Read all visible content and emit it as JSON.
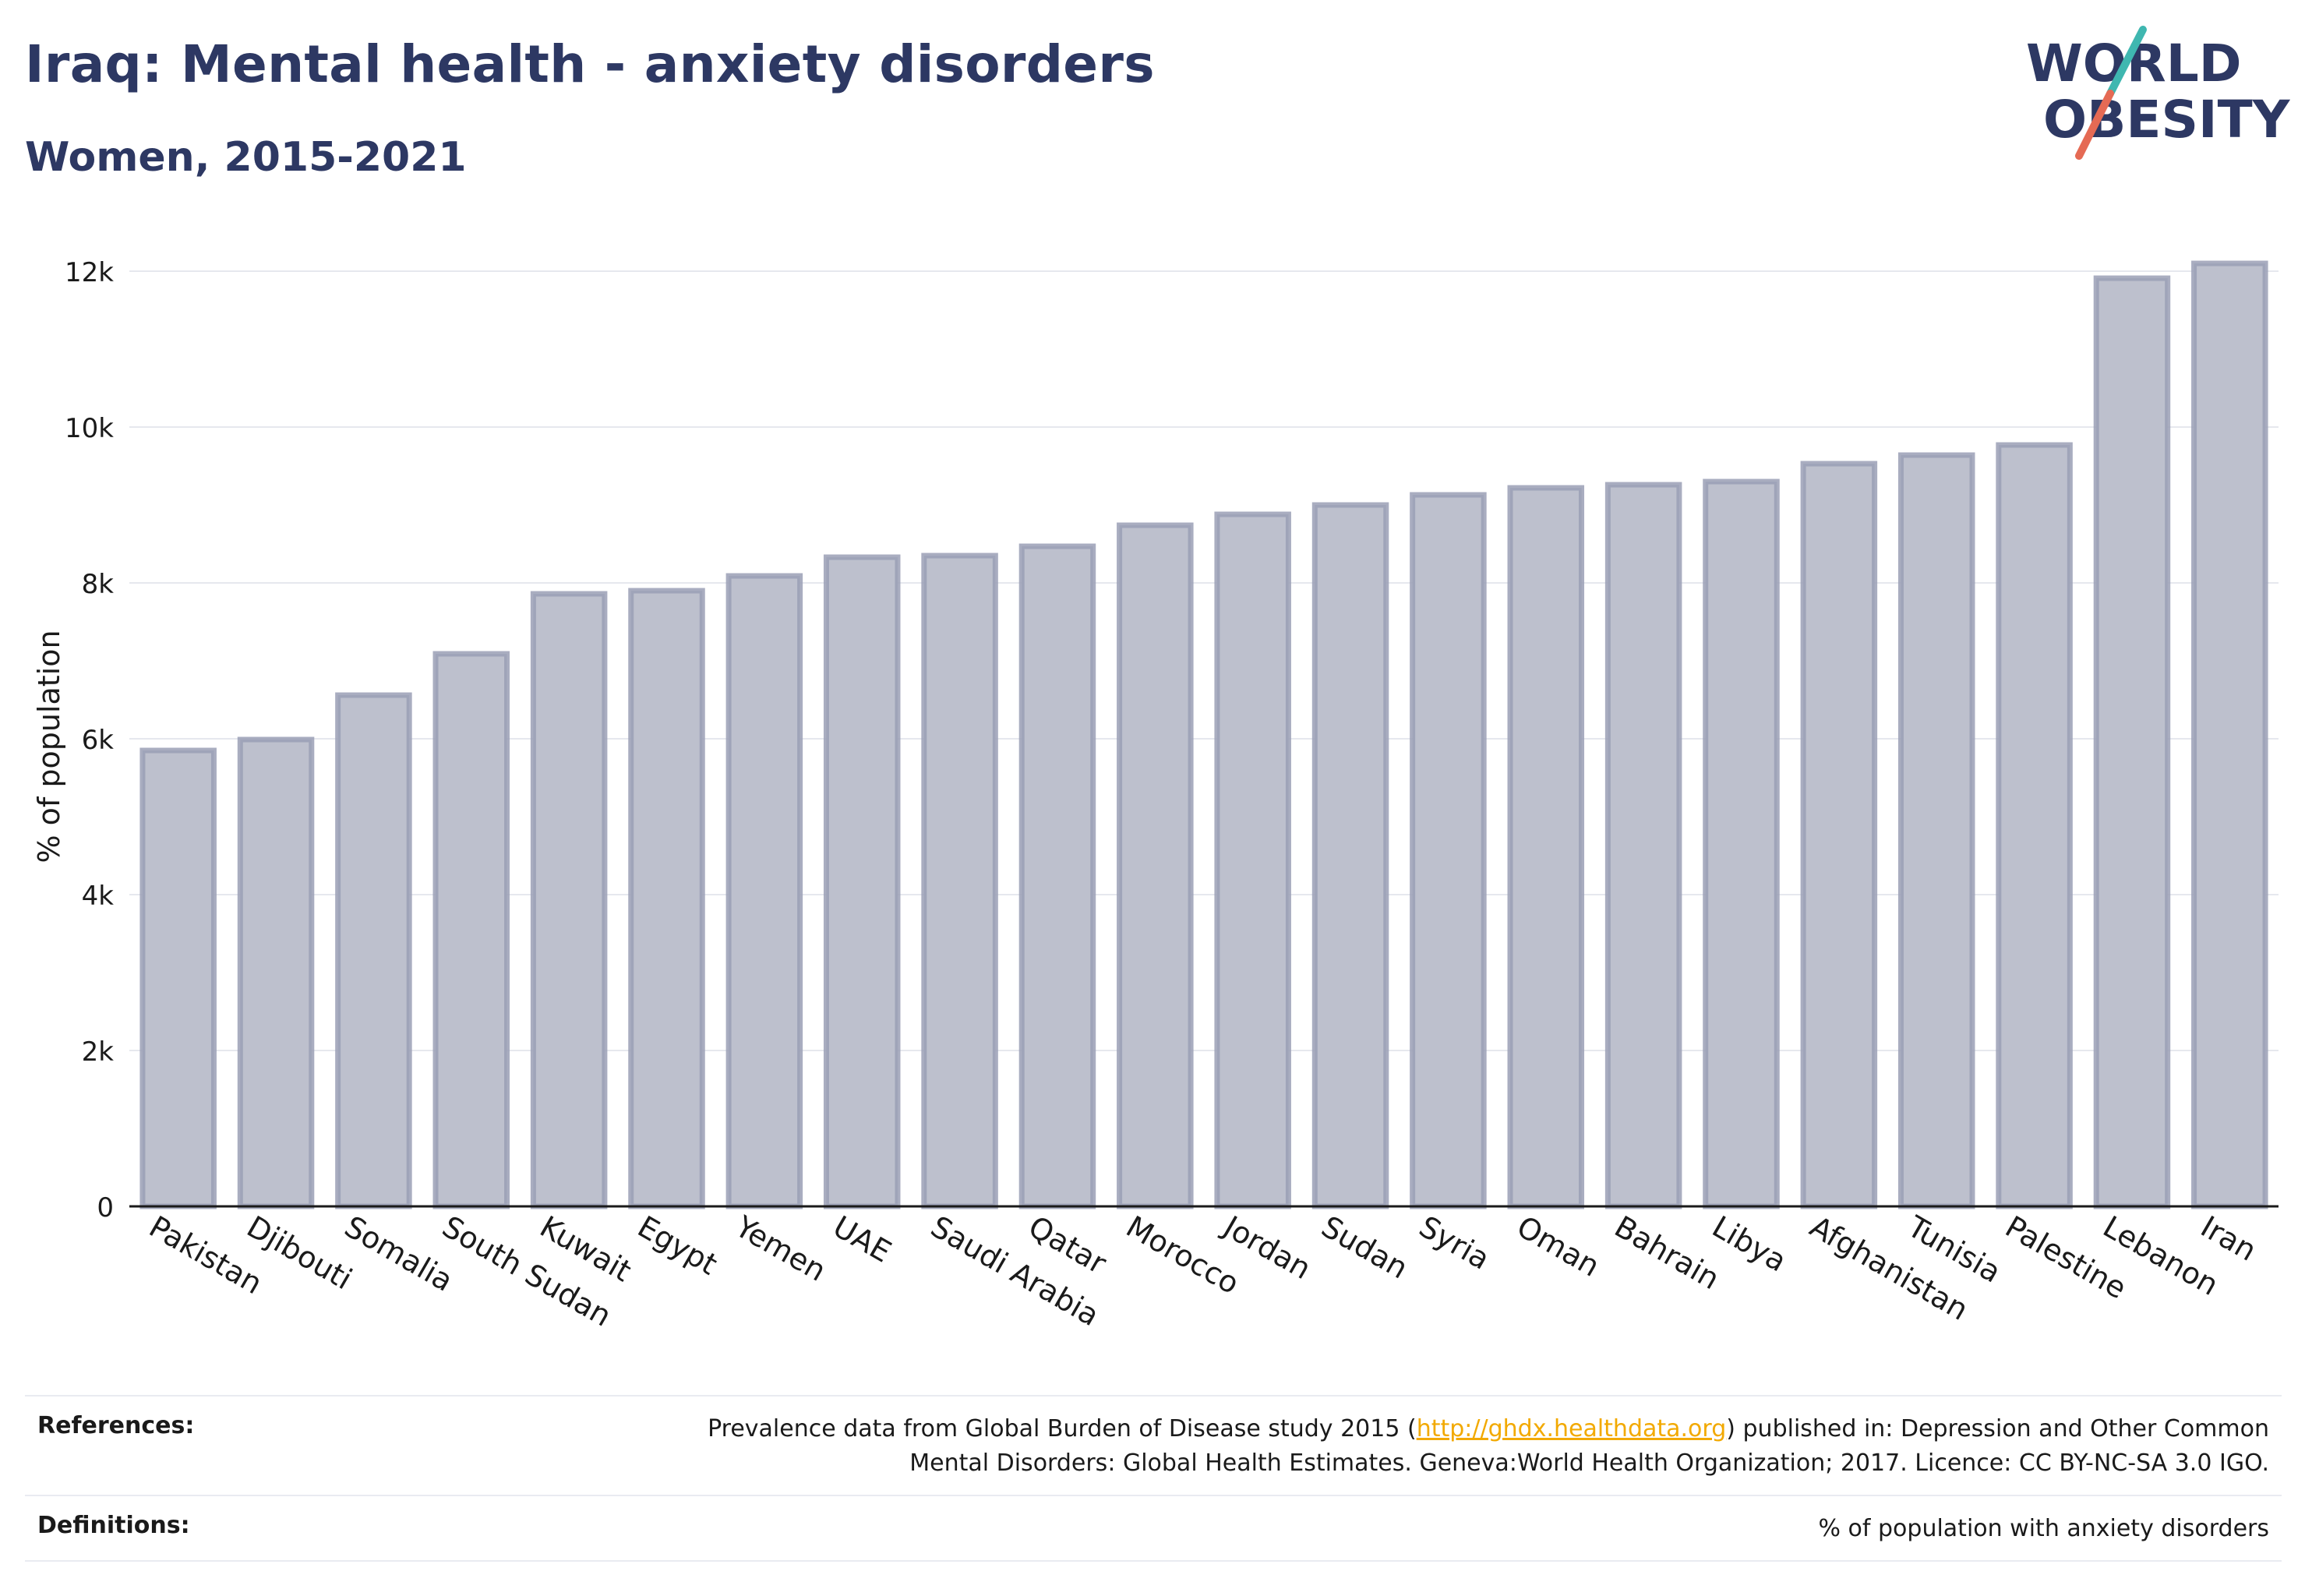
{
  "header": {
    "title": "Iraq: Mental health - anxiety disorders",
    "subtitle": "Women, 2015-2021"
  },
  "logo": {
    "line1": "WORLD",
    "line2": "OBESITY"
  },
  "chart_data": {
    "type": "bar",
    "ylabel": "% of population",
    "xlabel": "",
    "ylim": [
      0,
      12000
    ],
    "yticks": [
      0,
      2000,
      4000,
      6000,
      8000,
      10000,
      12000
    ],
    "ytick_labels": [
      "0",
      "2k",
      "4k",
      "6k",
      "8k",
      "10k",
      "12k"
    ],
    "grid": true,
    "categories": [
      "Pakistan",
      "Djibouti",
      "Somalia",
      "South Sudan",
      "Kuwait",
      "Egypt",
      "Yemen",
      "UAE",
      "Saudi Arabia",
      "Qatar",
      "Morocco",
      "Jordan",
      "Sudan",
      "Syria",
      "Oman",
      "Bahrain",
      "Libya",
      "Afghanistan",
      "Tunisia",
      "Palestine",
      "Lebanon",
      "Iran"
    ],
    "values": [
      5850,
      5990,
      6560,
      7090,
      7860,
      7900,
      8090,
      8330,
      8350,
      8470,
      8740,
      8880,
      9000,
      9130,
      9220,
      9260,
      9300,
      9530,
      9640,
      9770,
      11910,
      12100
    ],
    "bar_fill": "#bdc0cd",
    "bar_stroke": "#9a9fb5"
  },
  "references": {
    "label": "References:",
    "text_before": "Prevalence data from Global Burden of Disease study 2015 (",
    "link": "http://ghdx.healthdata.org",
    "text_after": ") published in: Depression and Other Common",
    "line2": "Mental Disorders: Global Health Estimates. Geneva:World Health Organization; 2017. Licence: CC BY-NC-SA 3.0 IGO."
  },
  "definitions": {
    "label": "Definitions:",
    "text": "% of population with anxiety disorders"
  }
}
